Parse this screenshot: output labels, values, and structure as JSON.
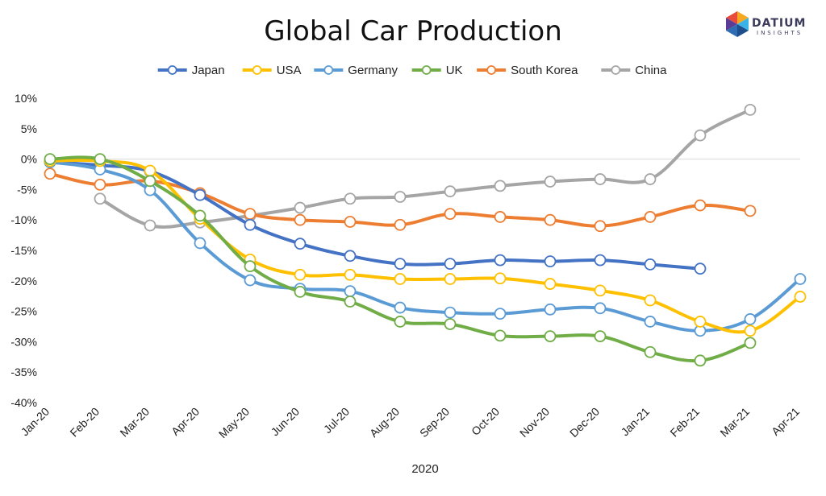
{
  "brand": {
    "name": "DATIUM",
    "sub": "INSIGHTS",
    "colors": [
      "#e84a3c",
      "#f7a823",
      "#3bb3e6",
      "#5b3d97",
      "#2e6db4"
    ]
  },
  "chart_data": {
    "type": "line",
    "title": "Global Car Production",
    "xlabel": "2020",
    "ylabel": "",
    "categories": [
      "Jan-20",
      "Feb-20",
      "Mar-20",
      "Apr-20",
      "May-20",
      "Jun-20",
      "Jul-20",
      "Aug-20",
      "Sep-20",
      "Oct-20",
      "Nov-20",
      "Dec-20",
      "Jan-21",
      "Feb-21",
      "Mar-21",
      "Apr-21"
    ],
    "ylim": [
      -40,
      10
    ],
    "yticks": [
      10,
      5,
      0,
      -5,
      -10,
      -15,
      -20,
      -25,
      -30,
      -35,
      -40
    ],
    "ytick_labels": [
      "10%",
      "5%",
      "0%",
      "-5%",
      "-10%",
      "-15%",
      "-20%",
      "-25%",
      "-30%",
      "-35%",
      "-40%"
    ],
    "grid": "zero-line only",
    "legend_position": "top",
    "series": [
      {
        "name": "Japan",
        "color": "#4472c4",
        "values": [
          -0.5,
          -1.0,
          -2.0,
          -5.9,
          -10.8,
          -13.9,
          -15.9,
          -17.2,
          -17.2,
          -16.6,
          -16.8,
          -16.6,
          -17.3,
          -18.0,
          null,
          null
        ]
      },
      {
        "name": "USA",
        "color": "#ffc000",
        "values": [
          -0.3,
          -0.3,
          -1.9,
          -9.8,
          -16.5,
          -19.0,
          -19.0,
          -19.7,
          -19.7,
          -19.6,
          -20.5,
          -21.6,
          -23.2,
          -26.7,
          -28.2,
          -22.6
        ]
      },
      {
        "name": "Germany",
        "color": "#5b9bd5",
        "values": [
          -0.5,
          -1.7,
          -5.1,
          -13.8,
          -19.9,
          -21.3,
          -21.7,
          -24.4,
          -25.2,
          -25.4,
          -24.7,
          -24.5,
          -26.7,
          -28.2,
          -26.3,
          -19.7
        ]
      },
      {
        "name": "UK",
        "color": "#70ad47",
        "values": [
          0.0,
          0.0,
          -3.6,
          -9.3,
          -17.6,
          -21.8,
          -23.4,
          -26.7,
          -27.1,
          -29.0,
          -29.1,
          -29.1,
          -31.7,
          -33.1,
          -30.2,
          null
        ]
      },
      {
        "name": "South Korea",
        "color": "#ed7d31",
        "values": [
          -2.4,
          -4.2,
          -3.6,
          -5.6,
          -9.0,
          -10.0,
          -10.3,
          -10.8,
          -9.0,
          -9.5,
          -10.0,
          -11.0,
          -9.5,
          -7.6,
          -8.5,
          null
        ]
      },
      {
        "name": "China",
        "color": "#a5a5a5",
        "values": [
          null,
          -6.5,
          -10.9,
          -10.4,
          -9.3,
          -8.0,
          -6.5,
          -6.2,
          -5.3,
          -4.4,
          -3.7,
          -3.3,
          -3.3,
          3.9,
          8.1,
          null
        ]
      }
    ]
  }
}
